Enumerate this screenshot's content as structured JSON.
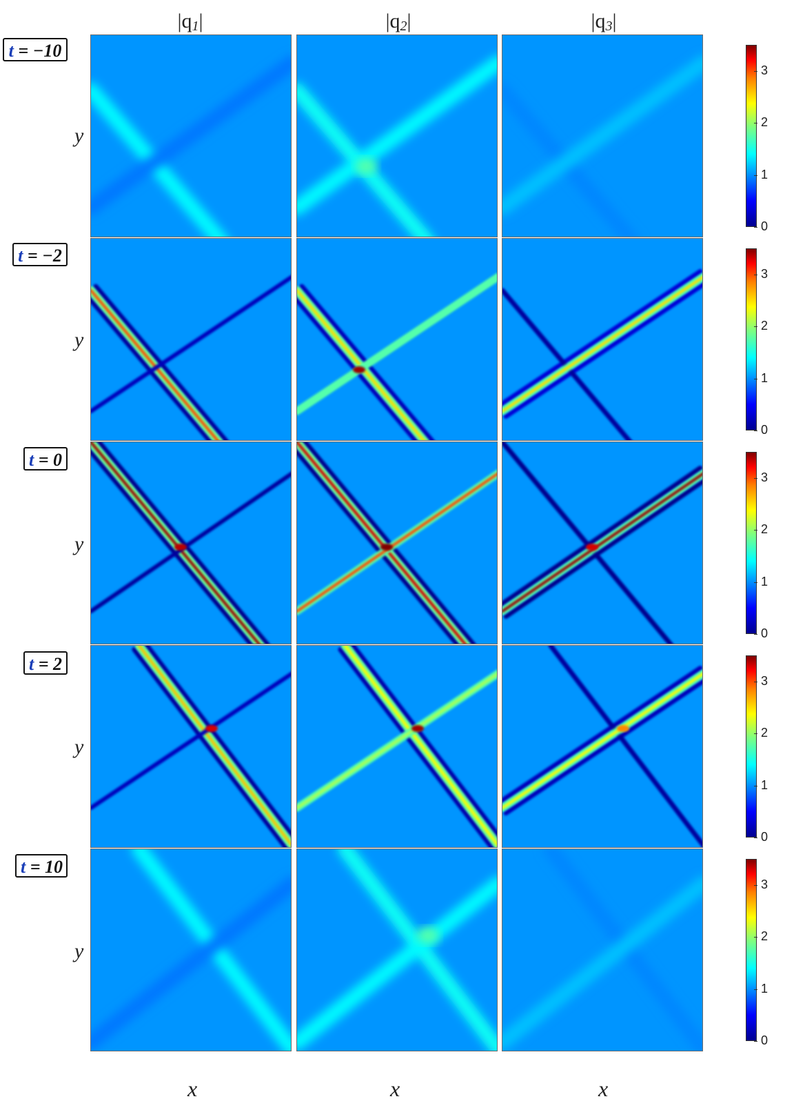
{
  "chart_data": {
    "type": "heatmap",
    "columns": [
      {
        "prefix": "|q",
        "sub": "1",
        "suffix": "|"
      },
      {
        "prefix": "|q",
        "sub": "2",
        "suffix": "|"
      },
      {
        "prefix": "|q",
        "sub": "3",
        "suffix": "|"
      }
    ],
    "rows": [
      {
        "t_symbol": "t",
        "t_value": "= −10"
      },
      {
        "t_symbol": "t",
        "t_value": "= −2"
      },
      {
        "t_symbol": "t",
        "t_value": "= 0"
      },
      {
        "t_symbol": "t",
        "t_value": "= 2"
      },
      {
        "t_symbol": "t",
        "t_value": "= 10"
      }
    ],
    "xlabel": "x",
    "ylabel": "y",
    "colorbar": {
      "range": [
        0,
        3.5
      ],
      "ticks": [
        "0",
        "1",
        "2",
        "3"
      ],
      "colormap": "jet"
    },
    "background_level": 0.95,
    "panels": [
      [
        {
          "bright": {
            "intensity": 1.3,
            "width": "wide"
          },
          "dark": {
            "intensity": 0.85
          }
        },
        {
          "bright": {
            "intensity": 1.35,
            "width": "wide"
          },
          "dark": {
            "intensity": 1.3
          },
          "center": 1.6
        },
        {
          "bright": {
            "intensity": 0.9
          },
          "dark": {
            "intensity": 1.1
          }
        }
      ],
      [
        {
          "main": {
            "peak": 2.8,
            "flank": 0.1
          },
          "other": {
            "peak": 0.2
          }
        },
        {
          "main": {
            "peak": 2.3,
            "flank": 0.2
          },
          "other": {
            "peak": 1.6
          },
          "center": 3.4
        },
        {
          "main": {
            "peak": 0.1
          },
          "other": {
            "peak": 2.3,
            "flank": 0.3
          }
        }
      ],
      [
        {
          "main": {
            "peak": 3.4,
            "flank": 0.05
          },
          "other": {
            "peak": 0.1
          },
          "center": 3.3
        },
        {
          "main": {
            "peak": 3.2,
            "flank": 0.05
          },
          "other": {
            "peak": 2.8
          },
          "center": 3.5
        },
        {
          "main": {
            "peak": 0.05
          },
          "other": {
            "peak": 3.4,
            "flank": 0.05
          },
          "center": 3.2
        }
      ],
      [
        {
          "main": {
            "peak": 2.4,
            "flank": 0.1
          },
          "other": {
            "peak": 0.2
          },
          "center": 3.2
        },
        {
          "main": {
            "peak": 2.2,
            "flank": 0.15
          },
          "other": {
            "peak": 1.9
          },
          "center": 3.4
        },
        {
          "main": {
            "peak": 0.1
          },
          "other": {
            "peak": 2.2,
            "flank": 0.2
          },
          "center": 2.6
        }
      ],
      [
        {
          "bright": {
            "intensity": 1.3,
            "width": "wide"
          },
          "dark": {
            "intensity": 0.85
          }
        },
        {
          "bright": {
            "intensity": 1.35,
            "width": "wide"
          },
          "dark": {
            "intensity": 1.3
          },
          "center": 1.6
        },
        {
          "bright": {
            "intensity": 0.9
          },
          "dark": {
            "intensity": 1.1
          }
        }
      ]
    ]
  }
}
